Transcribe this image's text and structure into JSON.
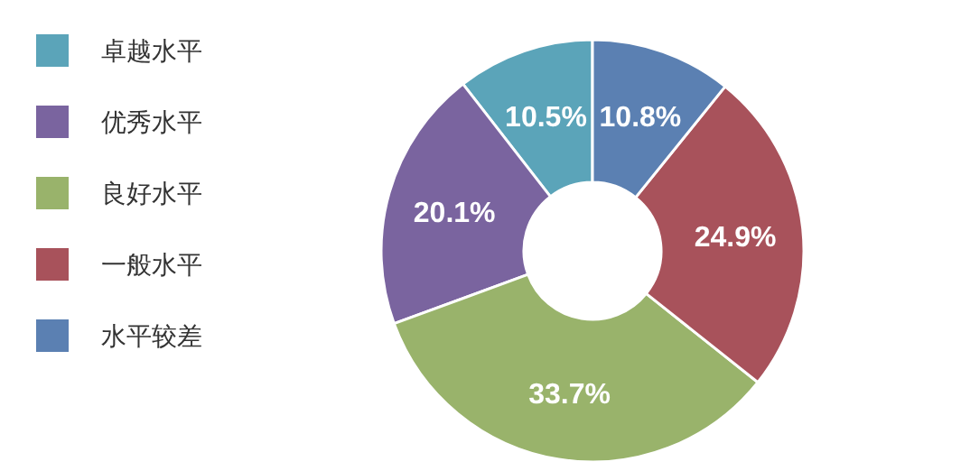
{
  "chart_data": {
    "type": "donut",
    "categories": [
      "卓越水平",
      "优秀水平",
      "良好水平",
      "一般水平",
      "水平较差"
    ],
    "values": [
      10.5,
      20.1,
      33.7,
      24.9,
      10.8
    ],
    "value_labels": [
      "10.5%",
      "20.1%",
      "33.7%",
      "24.9%",
      "10.8%"
    ],
    "colors": [
      "#5ba4b9",
      "#7a649f",
      "#99b36b",
      "#a8525b",
      "#5b80b2"
    ],
    "legend": "left"
  }
}
